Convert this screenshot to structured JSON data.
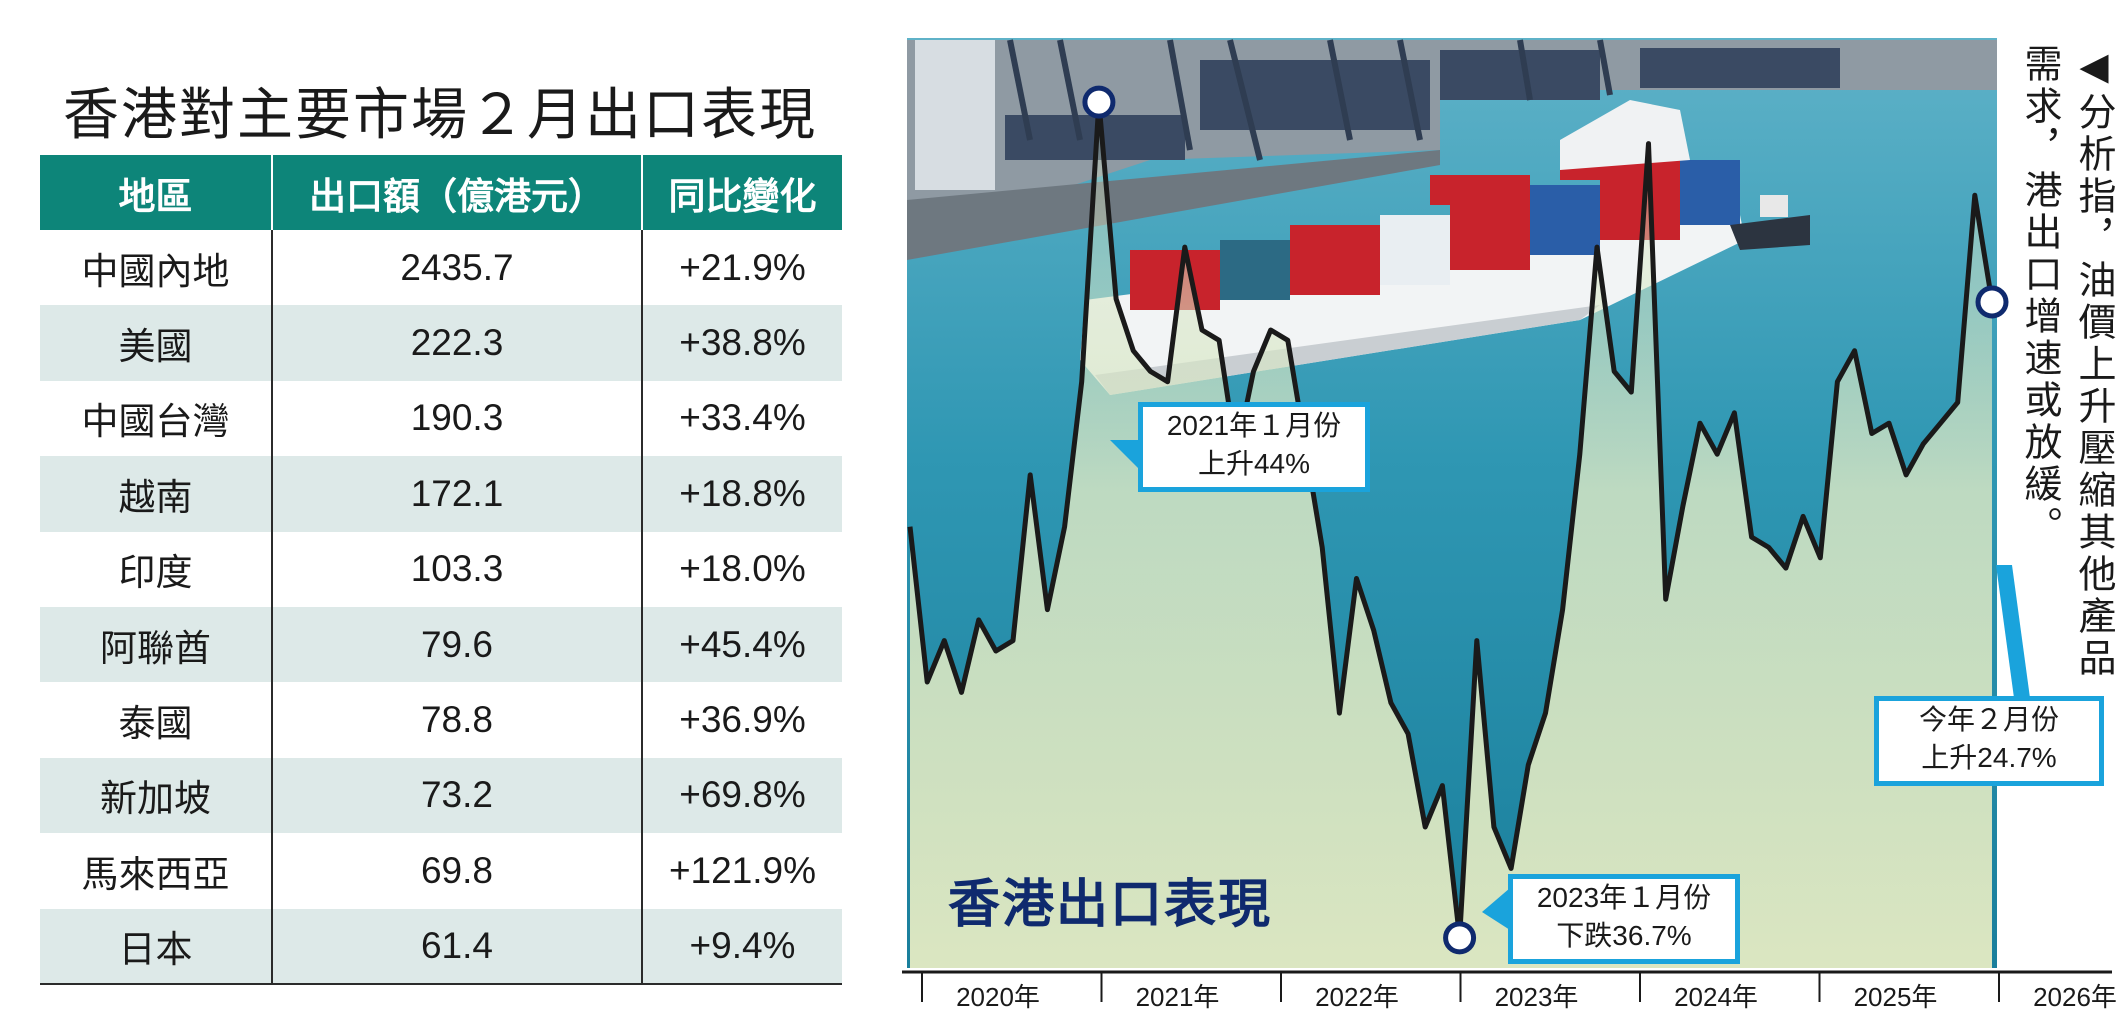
{
  "table": {
    "title": "香港對主要市場２月出口表現",
    "headers": [
      "地區",
      "出口額（億港元）",
      "同比變化"
    ],
    "rows": [
      {
        "region": "中國內地",
        "value": "2435.7",
        "change": "+21.9%"
      },
      {
        "region": "美國",
        "value": "222.3",
        "change": "+38.8%"
      },
      {
        "region": "中國台灣",
        "value": "190.3",
        "change": "+33.4%"
      },
      {
        "region": "越南",
        "value": "172.1",
        "change": "+18.8%"
      },
      {
        "region": "印度",
        "value": "103.3",
        "change": "+18.0%"
      },
      {
        "region": "阿聯酋",
        "value": "79.6",
        "change": "+45.4%"
      },
      {
        "region": "泰國",
        "value": "78.8",
        "change": "+36.9%"
      },
      {
        "region": "新加坡",
        "value": "73.2",
        "change": "+69.8%"
      },
      {
        "region": "馬來西亞",
        "value": "69.8",
        "change": "+121.9%"
      },
      {
        "region": "日本",
        "value": "61.4",
        "change": "+9.4%"
      }
    ]
  },
  "chart_data": {
    "type": "line",
    "title": "香港出口表現",
    "x_tick_labels": [
      "2020年",
      "2021年",
      "2022年",
      "2023年",
      "2024年",
      "2025年",
      "2026年"
    ],
    "ylim": [
      -40,
      50
    ],
    "grid": false,
    "series": [
      {
        "values": [
          3,
          -12,
          -8,
          -13,
          -6,
          -9,
          -8,
          8,
          -5,
          3,
          17,
          44,
          25,
          20,
          18,
          17,
          30,
          22,
          21,
          10,
          18,
          22,
          21,
          11,
          1,
          -15,
          -2,
          -7,
          -14,
          -17,
          -26,
          -22,
          -36.7,
          -8,
          -26,
          -30,
          -20,
          -15,
          -5,
          10,
          30,
          18,
          16,
          40,
          -4,
          5,
          13,
          10,
          14,
          2,
          1,
          -1,
          4,
          0,
          17,
          20,
          12,
          13,
          8,
          11,
          13,
          15,
          35,
          24.7
        ]
      }
    ],
    "annotations": [
      {
        "label_line1": "2021年１月份",
        "label_line2": "上升44%"
      },
      {
        "label_line1": "2023年１月份",
        "label_line2": "下跌36.7%"
      },
      {
        "label_line1": "今年２月份",
        "label_line2": "上升24.7%"
      }
    ]
  },
  "caption": "◀分析指，油價上升壓縮其他產品需求，港出口增速或放緩。",
  "colors": {
    "header": "#0d8579",
    "row_alt": "#dde9e8",
    "callout_border": "#1aa3dc",
    "title": "#0f2a6e",
    "line": "#1a1a1a"
  }
}
